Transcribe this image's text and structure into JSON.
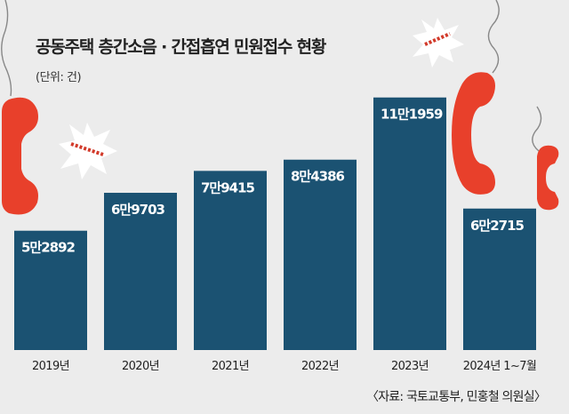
{
  "title": "공동주택 층간소음 · 간접흡연 민원접수 현황",
  "unit_note": "(단위: 건)",
  "source": "〈자료: 국토교통부, 민홍철 의원실〉",
  "colors": {
    "bar": "#1b5272",
    "phone": "#e8402b",
    "background": "#ececec",
    "text": "#222222"
  },
  "chart_data": {
    "type": "bar",
    "categories": [
      "2019년",
      "2020년",
      "2021년",
      "2022년",
      "2023년",
      "2024년 1~7월"
    ],
    "values": [
      52892,
      69703,
      79415,
      84386,
      111959,
      62715
    ],
    "data_labels": [
      "5만2892",
      "6만9703",
      "7만9415",
      "8만4386",
      "11만1959",
      "6만2715"
    ],
    "xlabel": "",
    "ylabel": "",
    "ylim": [
      0,
      115000
    ],
    "grid": false,
    "legend": "none"
  }
}
